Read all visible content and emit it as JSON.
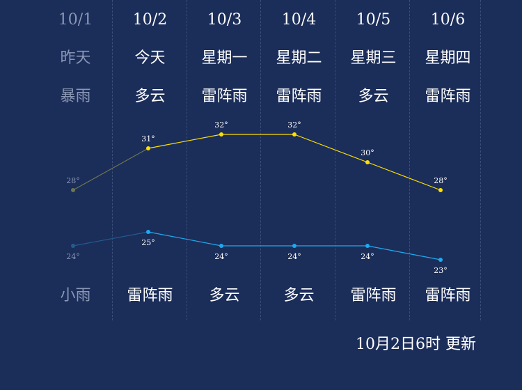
{
  "days": [
    {
      "date": "10/1",
      "name": "昨天",
      "day_weather": "暴雨",
      "night_weather": "小雨",
      "past": true
    },
    {
      "date": "10/2",
      "name": "今天",
      "day_weather": "多云",
      "night_weather": "雷阵雨",
      "past": false
    },
    {
      "date": "10/3",
      "name": "星期一",
      "day_weather": "雷阵雨",
      "night_weather": "多云",
      "past": false
    },
    {
      "date": "10/4",
      "name": "星期二",
      "day_weather": "雷阵雨",
      "night_weather": "多云",
      "past": false
    },
    {
      "date": "10/5",
      "name": "星期三",
      "day_weather": "多云",
      "night_weather": "雷阵雨",
      "past": false
    },
    {
      "date": "10/6",
      "name": "星期四",
      "day_weather": "雷阵雨",
      "night_weather": "雷阵雨",
      "past": false
    }
  ],
  "chart_data": {
    "type": "line",
    "x": [
      "10/1",
      "10/2",
      "10/3",
      "10/4",
      "10/5",
      "10/6"
    ],
    "series": [
      {
        "key": "high",
        "values": [
          28,
          31,
          32,
          32,
          30,
          28
        ],
        "labels": [
          "28°",
          "31°",
          "32°",
          "32°",
          "30°",
          "28°"
        ],
        "color": "#ffe000",
        "past_color": "#6e7650"
      },
      {
        "key": "low",
        "values": [
          24,
          25,
          24,
          24,
          24,
          23
        ],
        "labels": [
          "24°",
          "25°",
          "24°",
          "24°",
          "24°",
          "23°"
        ],
        "color": "#1eaaf0",
        "past_color": "#245b90"
      }
    ],
    "grid": false
  },
  "colors": {
    "background": "#1b2d59",
    "text": "#ffffff",
    "past_text": "#8a97b4",
    "divider": "#3b4e78"
  },
  "footer": {
    "update_text": "10月2日6时 更新"
  }
}
